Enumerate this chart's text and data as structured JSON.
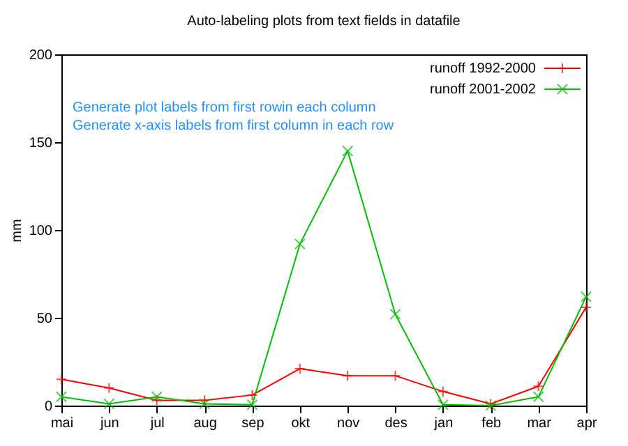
{
  "chart_data": {
    "type": "line",
    "title": "Auto-labeling plots from text fields in datafile",
    "ylabel": "mm",
    "categories": [
      "mai",
      "jun",
      "jul",
      "aug",
      "sep",
      "okt",
      "nov",
      "des",
      "jan",
      "feb",
      "mar",
      "apr"
    ],
    "series": [
      {
        "name": "runoff 1992-2000",
        "color": "#ff0000",
        "values": [
          15,
          10,
          3,
          3,
          6,
          21,
          17,
          17,
          8,
          1,
          11,
          56
        ]
      },
      {
        "name": "runoff 2001-2002",
        "color": "#00c000",
        "values": [
          5,
          1,
          5,
          1,
          0.5,
          92,
          145,
          52,
          0.5,
          0,
          5,
          62
        ]
      }
    ],
    "ylim": [
      0,
      200
    ],
    "yticks": [
      0,
      50,
      100,
      150,
      200
    ],
    "grid": false,
    "legend": "top right",
    "marker": "cross",
    "line_style": "solid",
    "annotations": [
      "Generate plot labels from first rowin each column",
      "Generate x-axis labels from first column in each row"
    ]
  }
}
